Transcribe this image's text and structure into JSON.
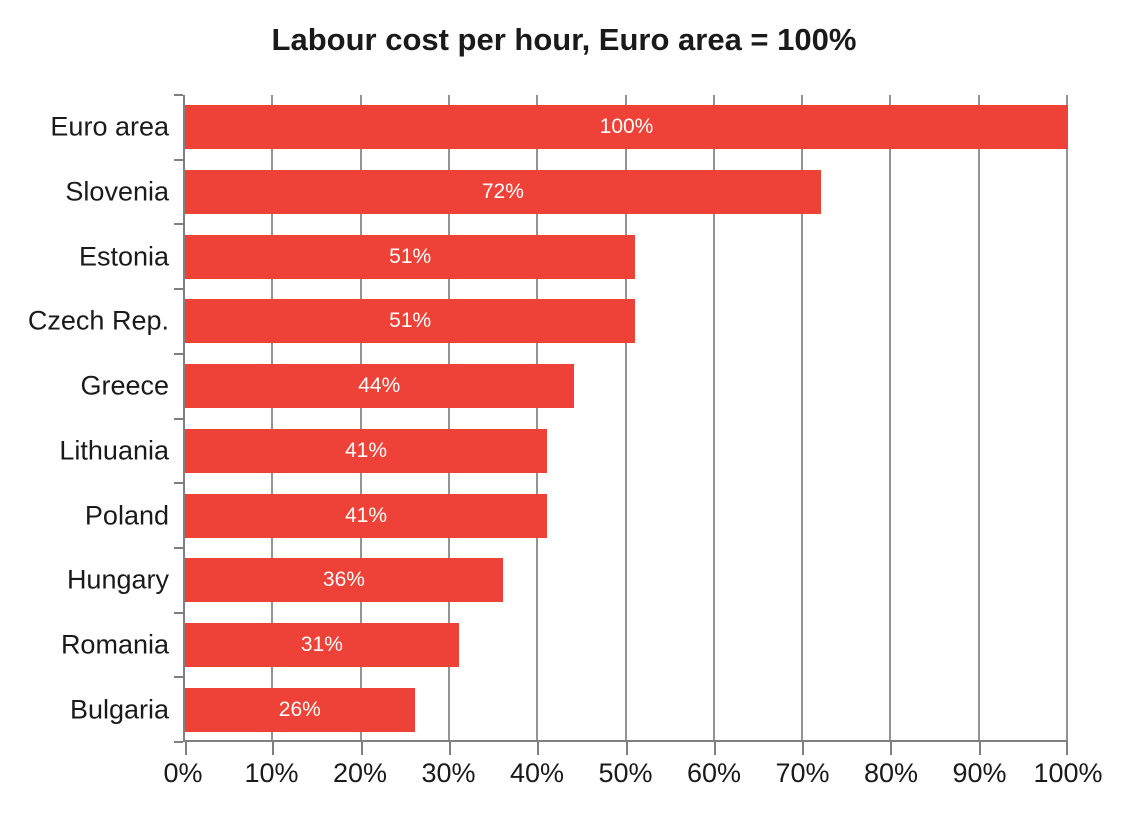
{
  "chart_data": {
    "type": "bar",
    "orientation": "horizontal",
    "title": "Labour cost per hour, Euro area = 100%",
    "categories": [
      "Euro area",
      "Slovenia",
      "Estonia",
      "Czech Rep.",
      "Greece",
      "Lithuania",
      "Poland",
      "Hungary",
      "Romania",
      "Bulgaria"
    ],
    "values": [
      100,
      72,
      51,
      51,
      44,
      41,
      41,
      36,
      31,
      26
    ],
    "data_labels": [
      "100%",
      "72%",
      "51%",
      "51%",
      "44%",
      "41%",
      "41%",
      "36%",
      "31%",
      "26%"
    ],
    "x_tick_labels": [
      "0%",
      "10%",
      "20%",
      "30%",
      "40%",
      "50%",
      "60%",
      "70%",
      "80%",
      "90%",
      "100%"
    ],
    "x_tick_values": [
      0,
      10,
      20,
      30,
      40,
      50,
      60,
      70,
      80,
      90,
      100
    ],
    "xlim": [
      0,
      100
    ],
    "grid": true,
    "legend": false,
    "xlabel": "",
    "ylabel": "",
    "colors": {
      "bar": "#ee4137",
      "bar_label_text": "#ffffff",
      "gridline": "#949494",
      "axis": "#808080",
      "title_text": "#1a1a1a",
      "tick_label_text": "#1a1a1a",
      "background": "#ffffff"
    }
  }
}
